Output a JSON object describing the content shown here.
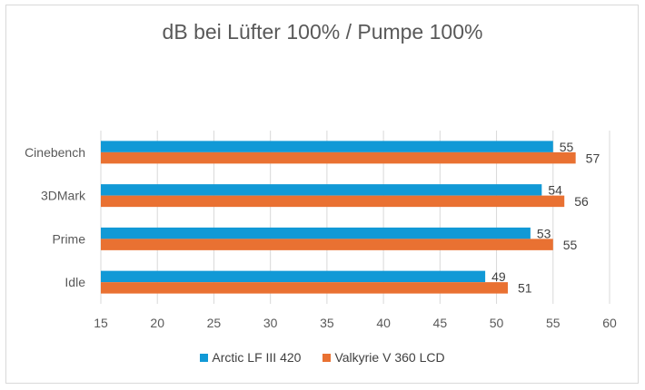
{
  "chart_data": {
    "type": "bar",
    "orientation": "horizontal",
    "title": "dB bei Lüfter 100% / Pumpe 100%",
    "categories": [
      "Cinebench",
      "3DMark",
      "Prime",
      "Idle"
    ],
    "series": [
      {
        "name": "Arctic LF III 420",
        "color": "#1199D6",
        "values": [
          55,
          54,
          53,
          49
        ]
      },
      {
        "name": "Valkyrie V 360 LCD",
        "color": "#E97132",
        "values": [
          57,
          56,
          55,
          51
        ]
      }
    ],
    "xlim": [
      15,
      60
    ],
    "xticks": [
      15,
      20,
      25,
      30,
      35,
      40,
      45,
      50,
      55,
      60
    ],
    "grid": true,
    "data_labels": true,
    "legend": "bottom"
  }
}
